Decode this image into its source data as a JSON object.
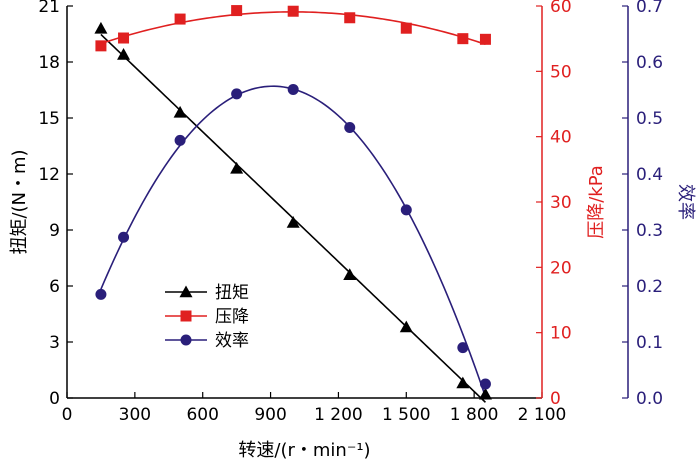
{
  "chart_data": {
    "type": "line",
    "x": {
      "label": "转速/(r・min⁻¹)",
      "lim": [
        0,
        2100
      ],
      "ticks": [
        0,
        300,
        600,
        900,
        1200,
        1500,
        1800,
        2100
      ],
      "tick_labels": [
        "0",
        "300",
        "600",
        "900",
        "1 200",
        "1 500",
        "1 800",
        "2 100"
      ]
    },
    "axes": [
      {
        "id": "torque",
        "side": "left",
        "label": "扭矩/(N・m)",
        "lim": [
          0,
          21
        ],
        "ticks": [
          0,
          3,
          6,
          9,
          12,
          15,
          18,
          21
        ],
        "tick_labels": [
          "0",
          "3",
          "6",
          "9",
          "12",
          "15",
          "18",
          "21"
        ],
        "color": "#000000"
      },
      {
        "id": "pressure",
        "side": "right",
        "label": "压降/kPa",
        "lim": [
          0,
          60
        ],
        "ticks": [
          0,
          10,
          20,
          30,
          40,
          50,
          60
        ],
        "tick_labels": [
          "0",
          "10",
          "20",
          "30",
          "40",
          "50",
          "60"
        ],
        "color": "#e02020"
      },
      {
        "id": "efficiency",
        "side": "right-outer",
        "label": "效率",
        "lim": [
          0,
          0.7
        ],
        "ticks": [
          0,
          0.1,
          0.2,
          0.3,
          0.4,
          0.5,
          0.6,
          0.7
        ],
        "tick_labels": [
          "0.0",
          "0.1",
          "0.2",
          "0.3",
          "0.4",
          "0.5",
          "0.6",
          "0.7"
        ],
        "color": "#2a1f7a"
      }
    ],
    "series": [
      {
        "name": "扭矩",
        "axis": "torque",
        "marker": "triangle",
        "color": "#000000",
        "fit": "linear",
        "x": [
          150,
          250,
          500,
          750,
          1000,
          1250,
          1500,
          1750,
          1850
        ],
        "y": [
          19.8,
          18.4,
          15.3,
          12.3,
          9.4,
          6.6,
          3.8,
          0.8,
          0.2
        ]
      },
      {
        "name": "压降",
        "axis": "pressure",
        "marker": "square",
        "color": "#e02020",
        "fit": "poly2",
        "x": [
          150,
          250,
          500,
          750,
          1000,
          1250,
          1500,
          1750,
          1850
        ],
        "y": [
          53.9,
          55.1,
          58.0,
          59.3,
          59.2,
          58.2,
          56.6,
          55.0,
          54.9
        ]
      },
      {
        "name": "效率",
        "axis": "efficiency",
        "marker": "circle",
        "color": "#2a1f7a",
        "fit": "poly2",
        "x": [
          150,
          250,
          500,
          750,
          1000,
          1250,
          1500,
          1750,
          1850
        ],
        "y": [
          0.185,
          0.287,
          0.46,
          0.543,
          0.551,
          0.483,
          0.336,
          0.09,
          0.025
        ]
      }
    ],
    "legend": {
      "position": "center-left"
    }
  }
}
